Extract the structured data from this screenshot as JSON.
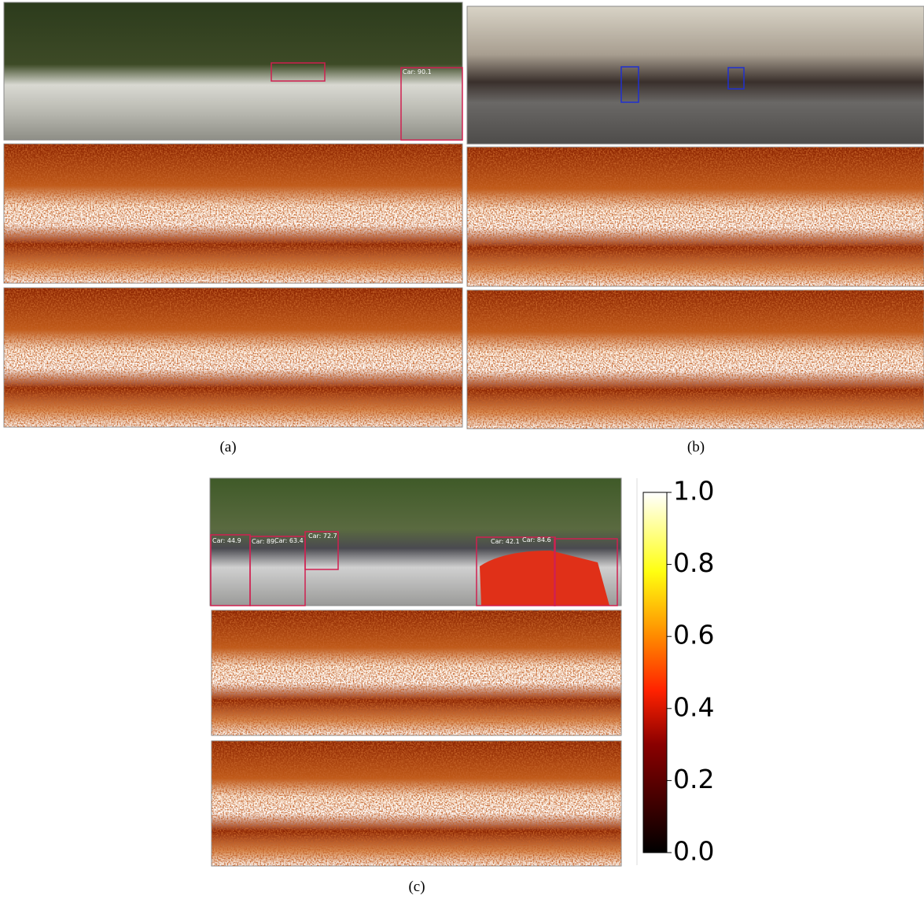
{
  "panels": [
    {
      "caption": "(a)",
      "detections": [
        "Car: 90.1"
      ]
    },
    {
      "caption": "(b)",
      "detections": []
    },
    {
      "caption": "(c)",
      "detections": [
        "Car: 44.9",
        "Car: 89.",
        "Car: 63.4",
        "Car: 72.7",
        "Car: 42.1",
        "Car: 84.6"
      ]
    }
  ],
  "colorbar": {
    "lim": [
      0,
      1
    ],
    "ticks": [
      {
        "value": 0,
        "label": "0.0"
      },
      {
        "value": 0.2,
        "label": "0.2"
      },
      {
        "value": 0.4,
        "label": "0.4"
      },
      {
        "value": 0.6,
        "label": "0.6"
      },
      {
        "value": 0.8,
        "label": "0.8"
      },
      {
        "value": 1,
        "label": "1.0"
      }
    ]
  }
}
